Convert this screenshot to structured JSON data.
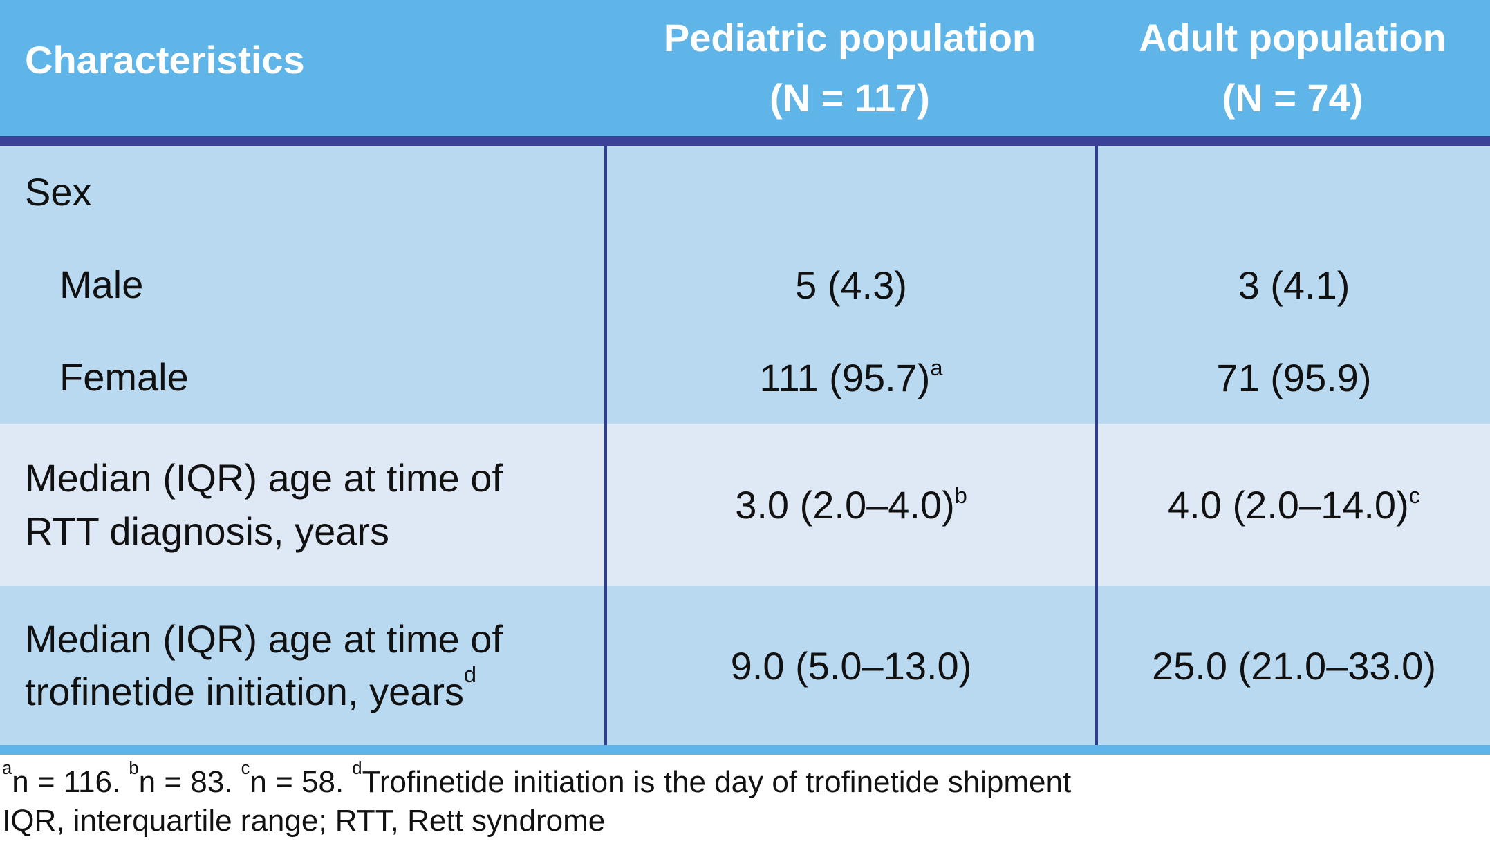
{
  "colors": {
    "header-blue": "#5fb4e8",
    "navy-rule": "#3b4098",
    "divider-blue": "#2e3c92",
    "row-blue": "#b9d9f1",
    "row-blue-light": "#dfe9f6",
    "header-text": "#ffffff",
    "text": "#111111",
    "page-bg": "#ffffff"
  },
  "table": {
    "header": {
      "characteristics": "Characteristics",
      "pediatric": {
        "line1": "Pediatric population",
        "line2": "(N = 117)"
      },
      "adult": {
        "line1": "Adult population",
        "line2": "(N = 74)"
      }
    },
    "sex": {
      "group_label": "Sex",
      "male": {
        "label": "Male",
        "pediatric": "5 (4.3)",
        "adult": "3 (4.1)"
      },
      "female": {
        "label": "Female",
        "pediatric": "111 (95.7)",
        "pediatric_sup": "a",
        "adult": "71 (95.9)"
      }
    },
    "age_at_diagnosis": {
      "label_line1": "Median (IQR) age at time of",
      "label_line2": "RTT diagnosis, years",
      "pediatric": "3.0 (2.0–4.0)",
      "pediatric_sup": "b",
      "adult": "4.0 (2.0–14.0)",
      "adult_sup": "c"
    },
    "age_at_initiation": {
      "label_line1": "Median (IQR) age at time of",
      "label_line2": "trofinetide initiation, years",
      "label_sup": "d",
      "pediatric": "9.0 (5.0–13.0)",
      "adult": "25.0 (21.0–33.0)"
    }
  },
  "footnotes": {
    "line1_segments": [
      {
        "sup": "a",
        "text": "n = 116. "
      },
      {
        "sup": "b",
        "text": "n = 83. "
      },
      {
        "sup": "c",
        "text": "n = 58. "
      },
      {
        "sup": "d",
        "text": "Trofinetide initiation is the day of trofinetide shipment"
      }
    ],
    "line2": "IQR, interquartile range; RTT, Rett syndrome"
  }
}
